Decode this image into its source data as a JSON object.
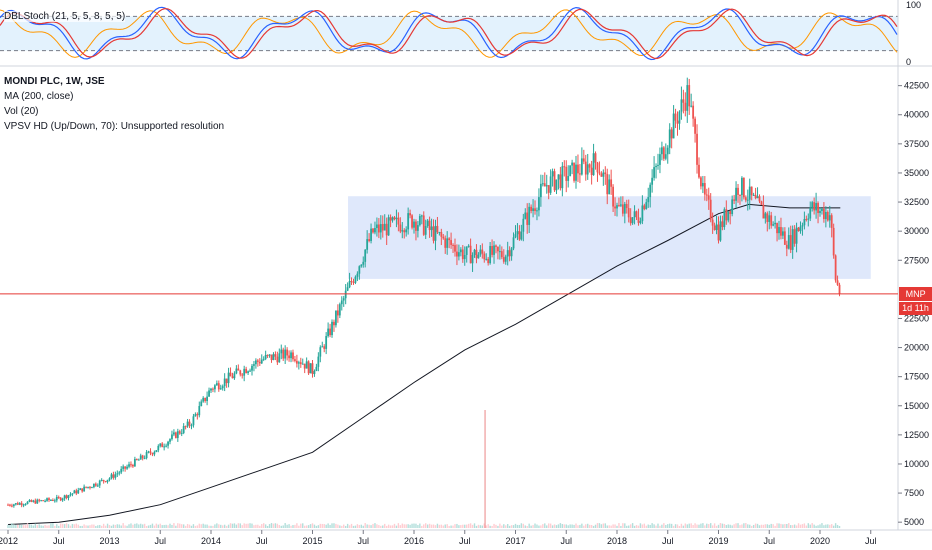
{
  "legend": {
    "title": "MONDI PLC, 1W, JSE",
    "ma": "MA (200, close)",
    "vol": "Vol (20)",
    "vpsv": "VPSV HD (Up/Down, 70): Unsupported resolution"
  },
  "oscillator": {
    "label": "DBLStoch (21, 5, 5, 8, 5, 5)",
    "ticks": [
      "100",
      "0"
    ],
    "upper_band": 80,
    "lower_band": 20,
    "colors": {
      "k": "#2962ff",
      "d": "#e53935",
      "slow": "#ff9800",
      "band": "#e3f2fd"
    }
  },
  "price_badge": {
    "symbol": "MNP",
    "value": "24608",
    "timer": "1d 11h"
  },
  "colors": {
    "up": "#26a69a",
    "down": "#ef5350",
    "ma": "#131722",
    "zone": "#dfe8fb",
    "price_line": "#e53935"
  },
  "chart_data": {
    "type": "candlestick",
    "ylim": [
      4500,
      43500
    ],
    "y_ticks": [
      "42500",
      "40000",
      "37500",
      "35000",
      "32500",
      "30000",
      "27500",
      "22500",
      "20000",
      "17500",
      "15000",
      "12500",
      "10000",
      "7500",
      "5000"
    ],
    "x_ticks": [
      "2012",
      "Jul",
      "2013",
      "Jul",
      "2014",
      "Jul",
      "2015",
      "Jul",
      "2016",
      "Jul",
      "2017",
      "Jul",
      "2018",
      "Jul",
      "2019",
      "Jul",
      "2020",
      "Jul"
    ],
    "anchors": [
      {
        "t": "2012",
        "v": 6500
      },
      {
        "t": "2012.5",
        "v": 7000
      },
      {
        "t": "2013",
        "v": 8800
      },
      {
        "t": "2013.5",
        "v": 11500
      },
      {
        "t": "2013.8",
        "v": 13500
      },
      {
        "t": "2014",
        "v": 16500
      },
      {
        "t": "2014.5",
        "v": 19000
      },
      {
        "t": "2014.8",
        "v": 19500
      },
      {
        "t": "2015",
        "v": 18000
      },
      {
        "t": "2015.3",
        "v": 24000
      },
      {
        "t": "2015.6",
        "v": 30000
      },
      {
        "t": "2016",
        "v": 31000
      },
      {
        "t": "2016.5",
        "v": 28000
      },
      {
        "t": "2016.9",
        "v": 28000
      },
      {
        "t": "2017.3",
        "v": 34000
      },
      {
        "t": "2017.8",
        "v": 36000
      },
      {
        "t": "2018",
        "v": 32000
      },
      {
        "t": "2018.2",
        "v": 31000
      },
      {
        "t": "2018.5",
        "v": 38000
      },
      {
        "t": "2018.7",
        "v": 42000
      },
      {
        "t": "2018.85",
        "v": 33000
      },
      {
        "t": "2019",
        "v": 30000
      },
      {
        "t": "2019.2",
        "v": 34000
      },
      {
        "t": "2019.5",
        "v": 31000
      },
      {
        "t": "2019.7",
        "v": 29000
      },
      {
        "t": "2019.9",
        "v": 32000
      },
      {
        "t": "2020.1",
        "v": 31500
      },
      {
        "t": "2020.15",
        "v": 26000
      },
      {
        "t": "2020.2",
        "v": 24608
      }
    ],
    "ma200": [
      {
        "t": "2012",
        "v": 4800
      },
      {
        "t": "2012.5",
        "v": 5000
      },
      {
        "t": "2013",
        "v": 5600
      },
      {
        "t": "2013.5",
        "v": 6500
      },
      {
        "t": "2014",
        "v": 8000
      },
      {
        "t": "2014.5",
        "v": 9500
      },
      {
        "t": "2015",
        "v": 11000
      },
      {
        "t": "2015.5",
        "v": 14000
      },
      {
        "t": "2016",
        "v": 17000
      },
      {
        "t": "2016.5",
        "v": 19800
      },
      {
        "t": "2017",
        "v": 22000
      },
      {
        "t": "2017.5",
        "v": 24500
      },
      {
        "t": "2018",
        "v": 27000
      },
      {
        "t": "2018.5",
        "v": 29200
      },
      {
        "t": "2019",
        "v": 31500
      },
      {
        "t": "2019.3",
        "v": 32300
      },
      {
        "t": "2019.7",
        "v": 32000
      },
      {
        "t": "2020.2",
        "v": 32000
      }
    ],
    "zone": {
      "t_start": "2015.35",
      "t_end": "2020.5",
      "v_low": 25900,
      "v_high": 33000
    },
    "last_price": 24608
  }
}
